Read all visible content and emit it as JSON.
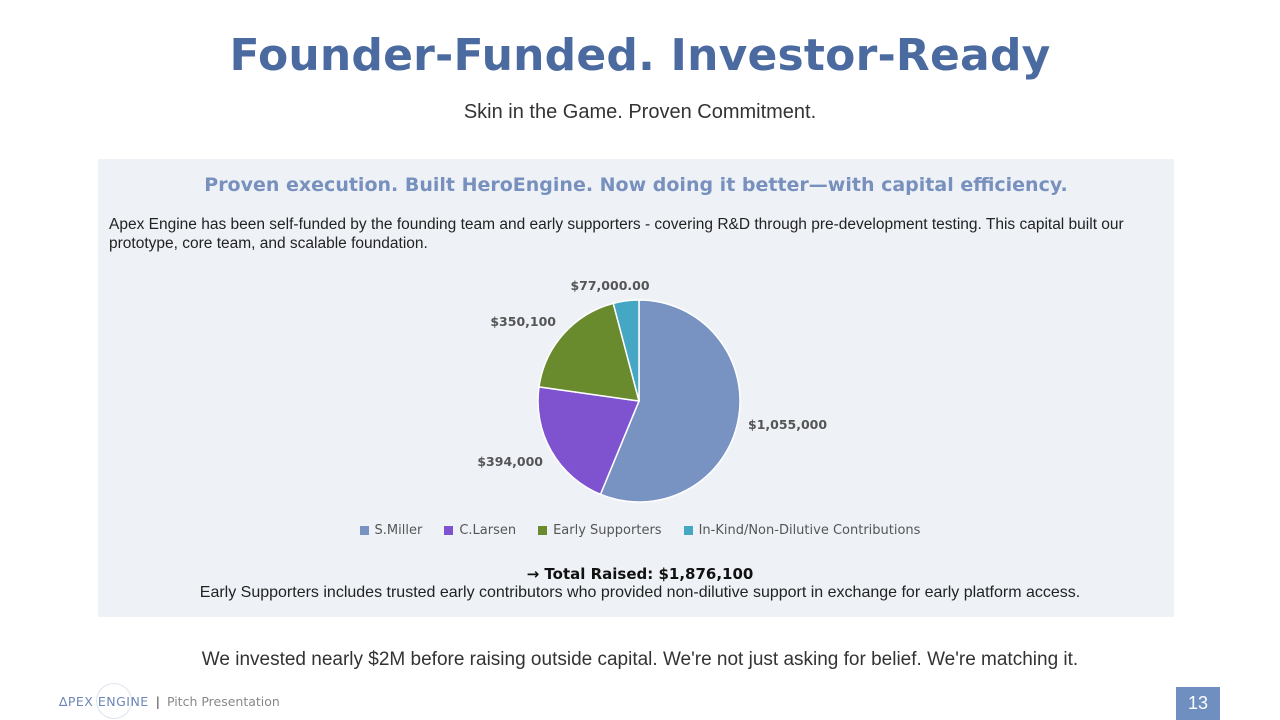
{
  "slide": {
    "title": "Founder-Funded. Investor-Ready",
    "subtitle": "Skin in the Game. Proven Commitment.",
    "panel_heading": "Proven execution. Built HeroEngine. Now doing it better—with capital efficiency.",
    "panel_body": "Apex Engine has been self-funded by the founding team and early supporters - covering R&D through pre-development testing. This capital built our prototype, core team, and scalable foundation.",
    "total": "→ Total Raised: $1,876,100",
    "note": "Early Supporters includes trusted early contributors who provided non-dilutive support in exchange for early platform access.",
    "closing": "We invested nearly $2M before raising outside capital. We're not just asking for belief. We're matching it.",
    "page_number": "13"
  },
  "footer": {
    "logo_text": "∆PEX ENGINE",
    "separator": "|",
    "label": "Pitch Presentation"
  },
  "chart_data": {
    "type": "pie",
    "categories": [
      "S.Miller",
      "C.Larsen",
      "Early Supporters",
      "In-Kind/Non-Dilutive Contributions"
    ],
    "values": [
      1055000,
      394000,
      350100,
      77000
    ],
    "data_labels": [
      "$1,055,000",
      "$394,000",
      "$350,100",
      "$77,000.00"
    ],
    "colors": [
      "#7892c2",
      "#7f52d0",
      "#6a8a2e",
      "#45a7c4"
    ],
    "legend_position": "bottom",
    "start_angle_degrees": 0,
    "direction": "clockwise"
  }
}
